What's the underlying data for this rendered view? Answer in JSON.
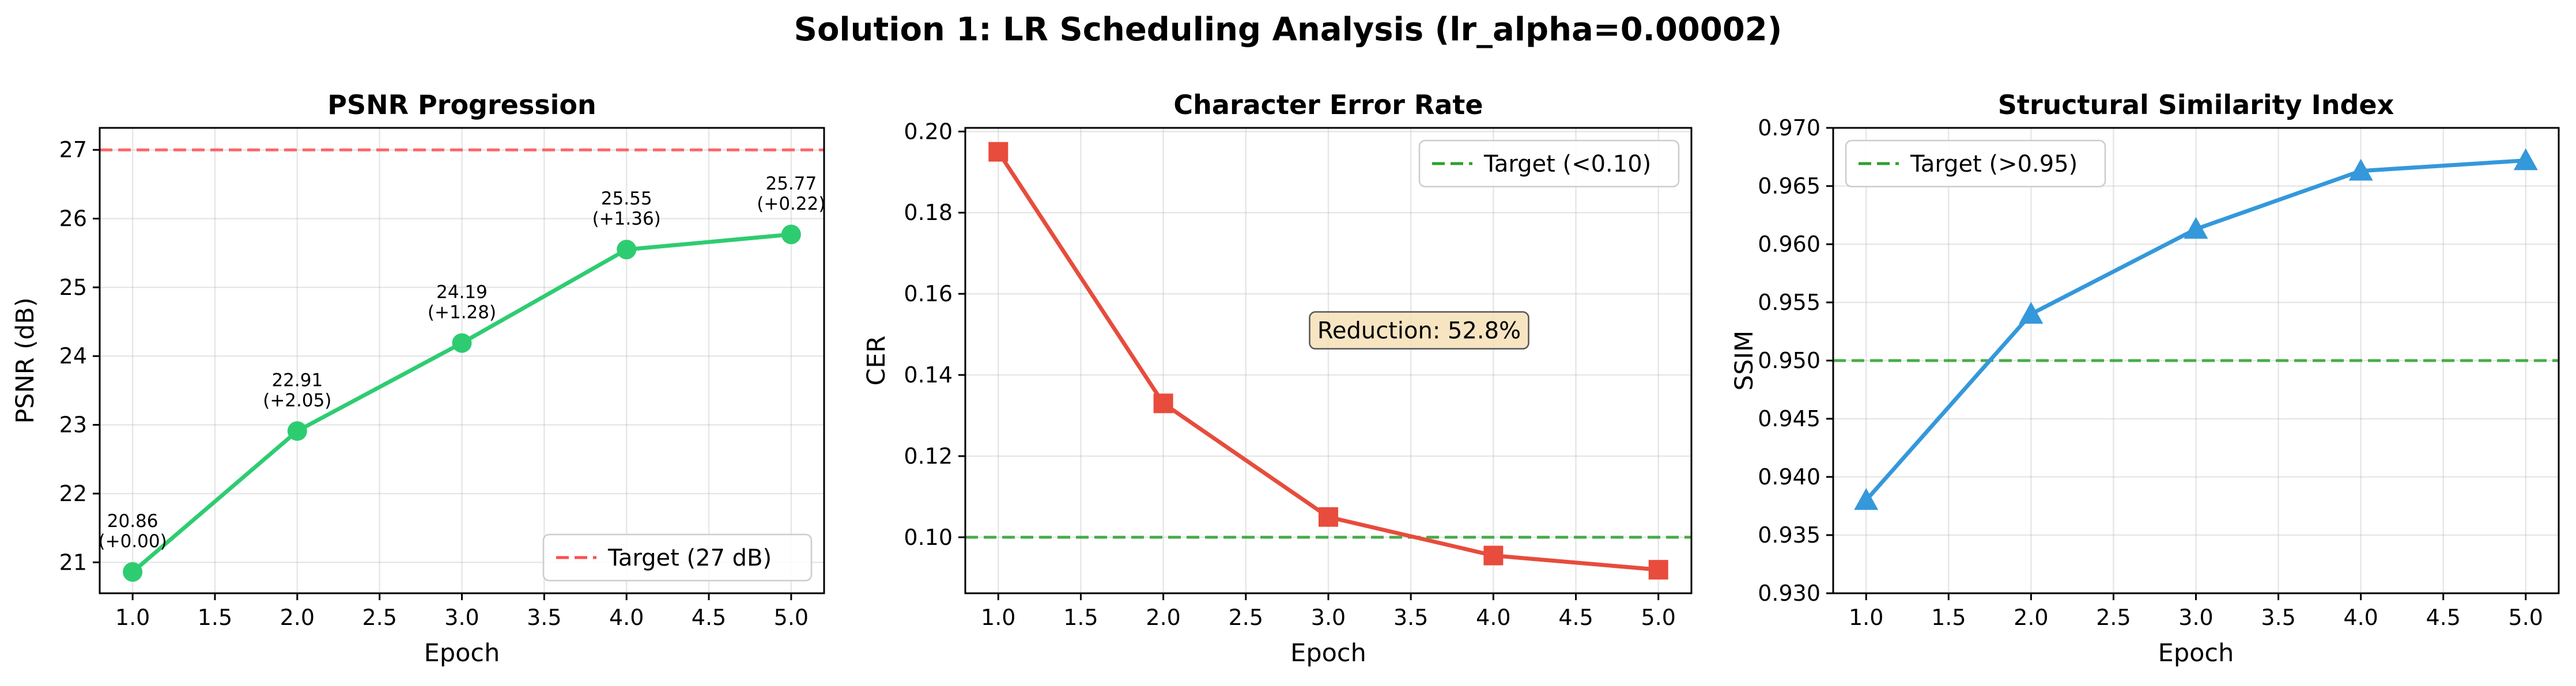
{
  "figure": {
    "suptitle": "Solution 1: LR Scheduling Analysis (lr_alpha=0.00002)"
  },
  "chart_data": [
    {
      "type": "line",
      "title": "PSNR Progression",
      "xlabel": "Epoch",
      "ylabel": "PSNR (dB)",
      "xlim": [
        0.8,
        5.2
      ],
      "ylim": [
        20.55,
        27.32
      ],
      "xticks": [
        "1.0",
        "1.5",
        "2.0",
        "2.5",
        "3.0",
        "3.5",
        "4.0",
        "4.5",
        "5.0"
      ],
      "yticks": [
        "21",
        "22",
        "23",
        "24",
        "25",
        "26",
        "27"
      ],
      "grid": true,
      "legend": {
        "position": "lower-right",
        "entries": [
          "Target (27 dB)"
        ]
      },
      "series": [
        {
          "x": [
            1,
            2,
            3,
            4,
            5
          ],
          "values": [
            20.86,
            22.91,
            24.19,
            25.55,
            25.77
          ],
          "color": "#2ecc71",
          "marker": "circle"
        }
      ],
      "reference_line": {
        "y": 27,
        "label": "Target (27 dB)",
        "color": "#ff4d4d",
        "style": "dashed"
      },
      "point_labels": [
        [
          "20.86",
          "(+0.00)"
        ],
        [
          "22.91",
          "(+2.05)"
        ],
        [
          "24.19",
          "(+1.28)"
        ],
        [
          "25.55",
          "(+1.36)"
        ],
        [
          "25.77",
          "(+0.22)"
        ]
      ]
    },
    {
      "type": "line",
      "title": "Character Error Rate",
      "xlabel": "Epoch",
      "ylabel": "CER",
      "xlim": [
        0.8,
        5.2
      ],
      "ylim": [
        0.0862,
        0.2009
      ],
      "xticks": [
        "1.0",
        "1.5",
        "2.0",
        "2.5",
        "3.0",
        "3.5",
        "4.0",
        "4.5",
        "5.0"
      ],
      "yticks": [
        "0.10",
        "0.12",
        "0.14",
        "0.16",
        "0.18",
        "0.20"
      ],
      "grid": true,
      "legend": {
        "position": "upper-right",
        "entries": [
          "Target (<0.10)"
        ]
      },
      "series": [
        {
          "x": [
            1,
            2,
            3,
            4,
            5
          ],
          "values": [
            0.195,
            0.133,
            0.105,
            0.0955,
            0.092
          ],
          "color": "#e74c3c",
          "marker": "square"
        }
      ],
      "reference_line": {
        "y": 0.1,
        "label": "Target (<0.10)",
        "color": "#2ca02c",
        "style": "dashed"
      },
      "annotation": {
        "text": "Reduction: 52.8%",
        "x": 3.55,
        "y": 0.151
      }
    },
    {
      "type": "line",
      "title": "Structural Similarity Index",
      "xlabel": "Epoch",
      "ylabel": "SSIM",
      "xlim": [
        0.8,
        5.2
      ],
      "ylim": [
        0.93,
        0.97
      ],
      "xticks": [
        "1.0",
        "1.5",
        "2.0",
        "2.5",
        "3.0",
        "3.5",
        "4.0",
        "4.5",
        "5.0"
      ],
      "yticks": [
        "0.930",
        "0.935",
        "0.940",
        "0.945",
        "0.950",
        "0.955",
        "0.960",
        "0.965",
        "0.970"
      ],
      "grid": true,
      "legend": {
        "position": "upper-left",
        "entries": [
          "Target (>0.95)"
        ]
      },
      "series": [
        {
          "x": [
            1,
            2,
            3,
            4,
            5
          ],
          "values": [
            0.938,
            0.954,
            0.9613,
            0.9663,
            0.9672
          ],
          "color": "#3498db",
          "marker": "triangle"
        }
      ],
      "reference_line": {
        "y": 0.95,
        "label": "Target (>0.95)",
        "color": "#2ca02c",
        "style": "dashed"
      }
    }
  ]
}
